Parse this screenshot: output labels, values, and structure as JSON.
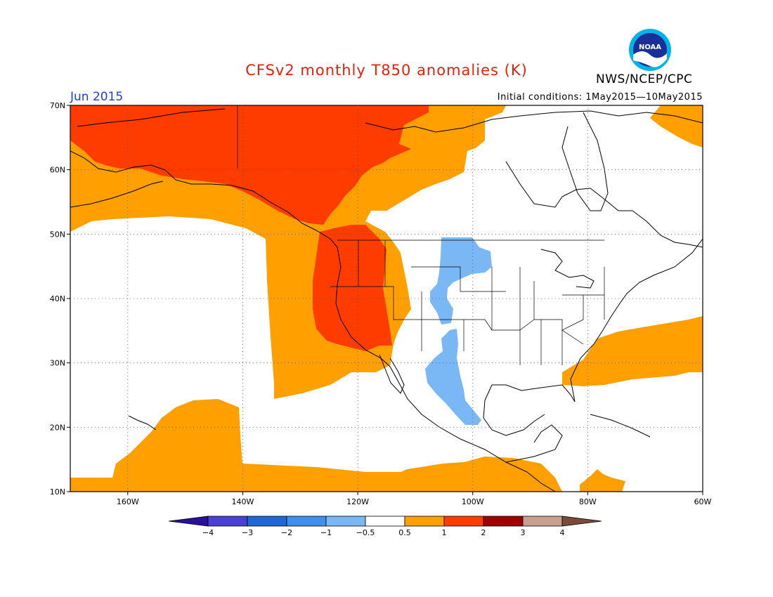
{
  "title": "CFSv2 monthly T850 anomalies (K)",
  "month": "Jun 2015",
  "initial_conditions": "Initial conditions: 1May2015—10May2015",
  "organization": "NWS/NCEP/CPC",
  "logo_text": "NOAA",
  "map": {
    "lat_range": [
      10,
      70
    ],
    "lon_range": [
      -170,
      -60
    ],
    "lat_ticks": [
      "10N",
      "20N",
      "30N",
      "40N",
      "50N",
      "60N",
      "70N"
    ],
    "lon_ticks": [
      "160W",
      "140W",
      "120W",
      "100W",
      "80W",
      "60W"
    ],
    "grid": true
  },
  "colorbar": {
    "labels": [
      "−4",
      "−3",
      "−2",
      "−1",
      "−0.5",
      "0.5",
      "1",
      "2",
      "3",
      "4"
    ],
    "colors": [
      "#2a0f9a",
      "#4a3fd6",
      "#1f66d6",
      "#3d8ff0",
      "#7ab8f5",
      "#ffffff",
      "#ffa000",
      "#ff3c00",
      "#a00000",
      "#c8a090",
      "#7a4a3a"
    ]
  },
  "colors": {
    "title": "#e8200c",
    "month": "#1e3fd0",
    "light_orange": "#ffa000",
    "red_orange": "#ff3c00",
    "light_blue": "#7ab8f5"
  }
}
